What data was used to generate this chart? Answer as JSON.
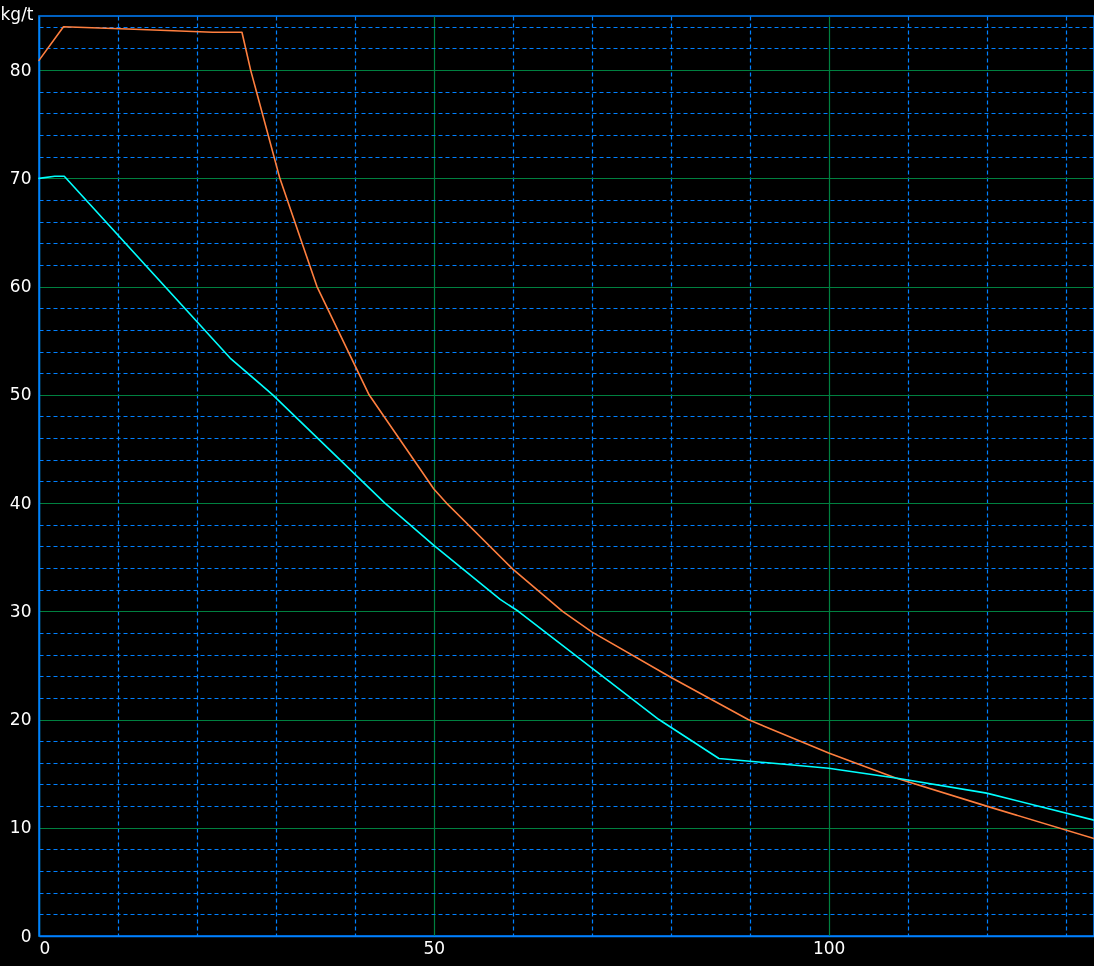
{
  "chart_data": {
    "type": "line",
    "ylabel": "kg/t",
    "xlim": [
      0,
      133.6
    ],
    "ylim": [
      0,
      85
    ],
    "xticks": [
      0,
      {
        "value": 10,
        "label": null
      },
      {
        "value": 20,
        "label": null
      },
      {
        "value": 30,
        "label": null
      },
      {
        "value": 40,
        "label": null
      },
      50,
      {
        "value": 60,
        "label": null
      },
      {
        "value": 70,
        "label": null
      },
      {
        "value": 80,
        "label": null
      },
      {
        "value": 90,
        "label": null
      },
      100,
      {
        "value": 110,
        "label": null
      },
      {
        "value": 120,
        "label": null
      },
      {
        "value": 130,
        "label": null
      }
    ],
    "yticks": [
      0,
      {
        "value": 2,
        "label": null
      },
      {
        "value": 4,
        "label": null
      },
      {
        "value": 6,
        "label": null
      },
      {
        "value": 8,
        "label": null
      },
      10,
      {
        "value": 12,
        "label": null
      },
      {
        "value": 14,
        "label": null
      },
      {
        "value": 16,
        "label": null
      },
      {
        "value": 18,
        "label": null
      },
      20,
      {
        "value": 22,
        "label": null
      },
      {
        "value": 24,
        "label": null
      },
      {
        "value": 26,
        "label": null
      },
      {
        "value": 28,
        "label": null
      },
      30,
      {
        "value": 32,
        "label": null
      },
      {
        "value": 34,
        "label": null
      },
      {
        "value": 36,
        "label": null
      },
      {
        "value": 38,
        "label": null
      },
      40,
      {
        "value": 42,
        "label": null
      },
      {
        "value": 44,
        "label": null
      },
      {
        "value": 46,
        "label": null
      },
      {
        "value": 48,
        "label": null
      },
      50,
      {
        "value": 52,
        "label": null
      },
      {
        "value": 54,
        "label": null
      },
      {
        "value": 56,
        "label": null
      },
      {
        "value": 58,
        "label": null
      },
      60,
      {
        "value": 62,
        "label": null
      },
      {
        "value": 64,
        "label": null
      },
      {
        "value": 66,
        "label": null
      },
      {
        "value": 68,
        "label": null
      },
      70,
      {
        "value": 72,
        "label": null
      },
      {
        "value": 74,
        "label": null
      },
      {
        "value": 76,
        "label": null
      },
      {
        "value": 78,
        "label": null
      },
      80,
      {
        "value": 82,
        "label": null
      },
      {
        "value": 84,
        "label": null
      }
    ],
    "grid": true,
    "series": [
      {
        "color": "#ff7f3f",
        "x": [
          0,
          3.1,
          11.2,
          22,
          25.7,
          26.8,
          30.5,
          35.2,
          41.8,
          50,
          51.6,
          60,
          66.3,
          70,
          80,
          89.8,
          100,
          108.5,
          120,
          133.6
        ],
        "values": [
          80.9,
          84,
          83.8,
          83.5,
          83.5,
          80,
          70,
          60,
          50,
          41.3,
          40,
          33.9,
          30,
          28.1,
          23.9,
          20,
          16.9,
          14.6,
          12,
          9
        ]
      },
      {
        "color": "#00ffff",
        "x": [
          0,
          2,
          3.2,
          24.2,
          29.6,
          43.8,
          50,
          58.4,
          60.7,
          78.5,
          86.1,
          100,
          108.5,
          120,
          133.6
        ],
        "values": [
          70,
          70.2,
          70.2,
          53.4,
          50,
          40,
          36.1,
          31.1,
          30,
          20,
          16.4,
          15.5,
          14.6,
          13.2,
          10.7
        ]
      }
    ]
  }
}
